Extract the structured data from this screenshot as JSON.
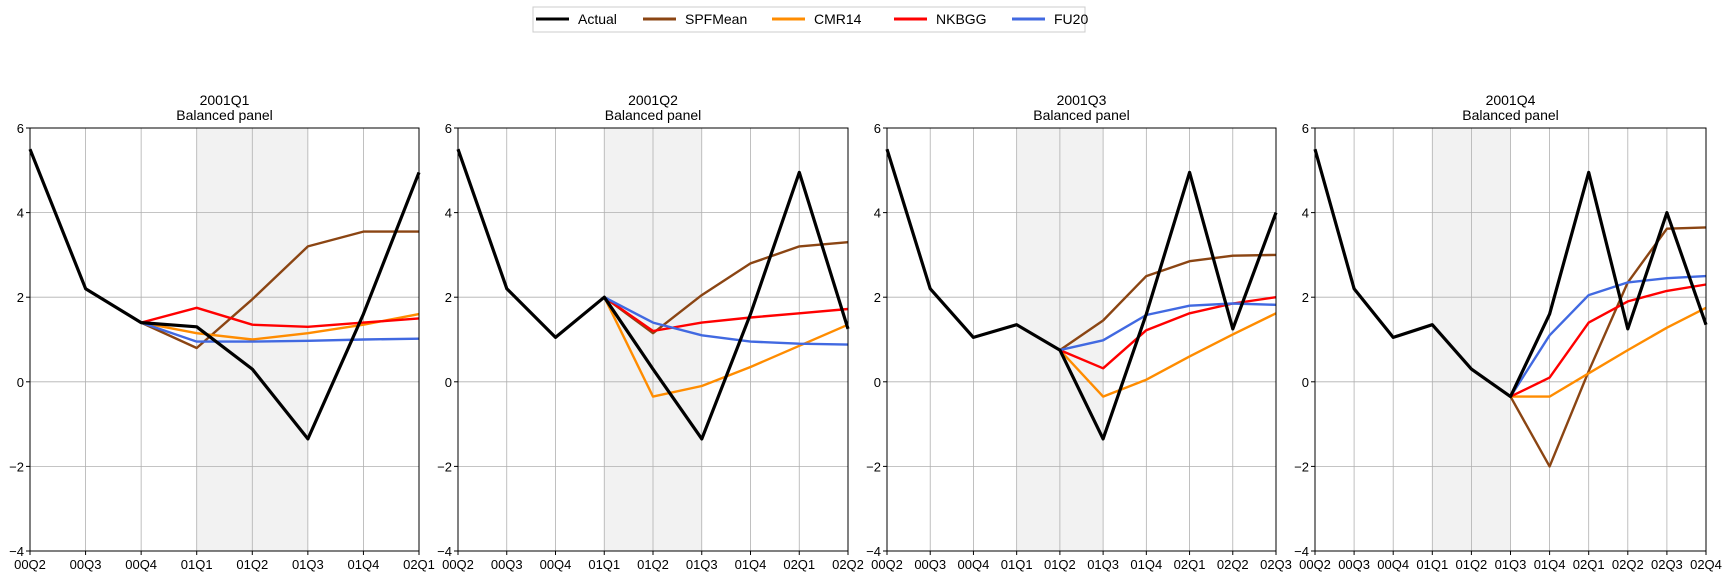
{
  "legend": {
    "placement": "top-center",
    "entries": [
      {
        "label": "Actual",
        "color": "#000000"
      },
      {
        "label": "SPFMean",
        "color": "#8B4513"
      },
      {
        "label": "CMR14",
        "color": "#FF8C00"
      },
      {
        "label": "NKBGG",
        "color": "#FF0000"
      },
      {
        "label": "FU20",
        "color": "#4169E1"
      }
    ]
  },
  "chart_data": [
    {
      "type": "line",
      "title": "2001Q1",
      "subtitle": "Balanced panel",
      "categories": [
        "00Q2",
        "00Q3",
        "00Q4",
        "01Q1",
        "01Q2",
        "01Q3",
        "01Q4",
        "02Q1"
      ],
      "ylim": [
        -4,
        6
      ],
      "yticks": [
        "6",
        "4",
        "2",
        "0",
        "−2",
        "−4"
      ],
      "grid": true,
      "shaded": {
        "from": "01Q1",
        "to": "01Q3"
      },
      "series": [
        {
          "name": "Actual",
          "color": "#000000",
          "values": [
            5.5,
            2.2,
            1.4,
            1.3,
            0.3,
            -1.35,
            1.6,
            4.95
          ]
        },
        {
          "name": "SPFMean",
          "color": "#8B4513",
          "values": [
            null,
            null,
            1.4,
            0.8,
            1.95,
            3.2,
            3.55,
            3.55
          ]
        },
        {
          "name": "CMR14",
          "color": "#FF8C00",
          "values": [
            null,
            null,
            1.4,
            1.15,
            1.0,
            1.15,
            1.35,
            1.6
          ]
        },
        {
          "name": "NKBGG",
          "color": "#FF0000",
          "values": [
            null,
            null,
            1.4,
            1.75,
            1.35,
            1.3,
            1.4,
            1.5
          ]
        },
        {
          "name": "FU20",
          "color": "#4169E1",
          "values": [
            null,
            null,
            1.4,
            0.95,
            0.95,
            0.97,
            1.0,
            1.02
          ]
        }
      ]
    },
    {
      "type": "line",
      "title": "2001Q2",
      "subtitle": "Balanced panel",
      "categories": [
        "00Q2",
        "00Q3",
        "00Q4",
        "01Q1",
        "01Q2",
        "01Q3",
        "01Q4",
        "02Q1",
        "02Q2"
      ],
      "ylim": [
        -4,
        6
      ],
      "yticks": [
        "6",
        "4",
        "2",
        "0",
        "−2",
        "−4"
      ],
      "grid": true,
      "shaded": {
        "from": "01Q1",
        "to": "01Q3"
      },
      "series": [
        {
          "name": "Actual",
          "color": "#000000",
          "values": [
            5.5,
            2.2,
            1.05,
            2.0,
            0.3,
            -1.35,
            1.6,
            4.95,
            1.25
          ]
        },
        {
          "name": "SPFMean",
          "color": "#8B4513",
          "values": [
            null,
            null,
            null,
            2.0,
            1.15,
            2.05,
            2.8,
            3.2,
            3.3
          ]
        },
        {
          "name": "CMR14",
          "color": "#FF8C00",
          "values": [
            null,
            null,
            null,
            2.0,
            -0.35,
            -0.1,
            0.35,
            0.85,
            1.35
          ]
        },
        {
          "name": "NKBGG",
          "color": "#FF0000",
          "values": [
            null,
            null,
            null,
            2.0,
            1.2,
            1.4,
            1.52,
            1.62,
            1.72
          ]
        },
        {
          "name": "FU20",
          "color": "#4169E1",
          "values": [
            null,
            null,
            null,
            2.0,
            1.4,
            1.1,
            0.95,
            0.9,
            0.88
          ]
        }
      ]
    },
    {
      "type": "line",
      "title": "2001Q3",
      "subtitle": "Balanced panel",
      "categories": [
        "00Q2",
        "00Q3",
        "00Q4",
        "01Q1",
        "01Q2",
        "01Q3",
        "01Q4",
        "02Q1",
        "02Q2",
        "02Q3"
      ],
      "ylim": [
        -4,
        6
      ],
      "yticks": [
        "6",
        "4",
        "2",
        "0",
        "−2",
        "−4"
      ],
      "grid": true,
      "shaded": {
        "from": "01Q1",
        "to": "01Q3"
      },
      "series": [
        {
          "name": "Actual",
          "color": "#000000",
          "values": [
            5.5,
            2.2,
            1.05,
            1.35,
            0.75,
            -1.35,
            1.6,
            4.95,
            1.25,
            4.0
          ]
        },
        {
          "name": "SPFMean",
          "color": "#8B4513",
          "values": [
            null,
            null,
            null,
            null,
            0.75,
            1.45,
            2.5,
            2.85,
            2.98,
            3.0
          ]
        },
        {
          "name": "CMR14",
          "color": "#FF8C00",
          "values": [
            null,
            null,
            null,
            null,
            0.75,
            -0.35,
            0.05,
            0.6,
            1.12,
            1.62
          ]
        },
        {
          "name": "NKBGG",
          "color": "#FF0000",
          "values": [
            null,
            null,
            null,
            null,
            0.75,
            0.32,
            1.22,
            1.62,
            1.85,
            2.0
          ]
        },
        {
          "name": "FU20",
          "color": "#4169E1",
          "values": [
            null,
            null,
            null,
            null,
            0.75,
            0.98,
            1.58,
            1.8,
            1.85,
            1.82
          ]
        }
      ]
    },
    {
      "type": "line",
      "title": "2001Q4",
      "subtitle": "Balanced panel",
      "categories": [
        "00Q2",
        "00Q3",
        "00Q4",
        "01Q1",
        "01Q2",
        "01Q3",
        "01Q4",
        "02Q1",
        "02Q2",
        "02Q3",
        "02Q4"
      ],
      "ylim": [
        -4,
        6
      ],
      "yticks": [
        "6",
        "4",
        "2",
        "0",
        "−2",
        "−4"
      ],
      "grid": true,
      "shaded": {
        "from": "01Q1",
        "to": "01Q3"
      },
      "series": [
        {
          "name": "Actual",
          "color": "#000000",
          "values": [
            5.5,
            2.2,
            1.05,
            1.35,
            0.3,
            -0.35,
            1.6,
            4.95,
            1.25,
            4.0,
            1.35
          ]
        },
        {
          "name": "SPFMean",
          "color": "#8B4513",
          "values": [
            null,
            null,
            null,
            null,
            null,
            -0.35,
            -2.0,
            0.25,
            2.35,
            3.62,
            3.65
          ]
        },
        {
          "name": "CMR14",
          "color": "#FF8C00",
          "values": [
            null,
            null,
            null,
            null,
            null,
            -0.35,
            -0.35,
            0.2,
            0.75,
            1.28,
            1.75
          ]
        },
        {
          "name": "NKBGG",
          "color": "#FF0000",
          "values": [
            null,
            null,
            null,
            null,
            null,
            -0.35,
            0.1,
            1.4,
            1.9,
            2.15,
            2.3
          ]
        },
        {
          "name": "FU20",
          "color": "#4169E1",
          "values": [
            null,
            null,
            null,
            null,
            null,
            -0.35,
            1.1,
            2.05,
            2.35,
            2.45,
            2.5
          ]
        }
      ]
    }
  ]
}
